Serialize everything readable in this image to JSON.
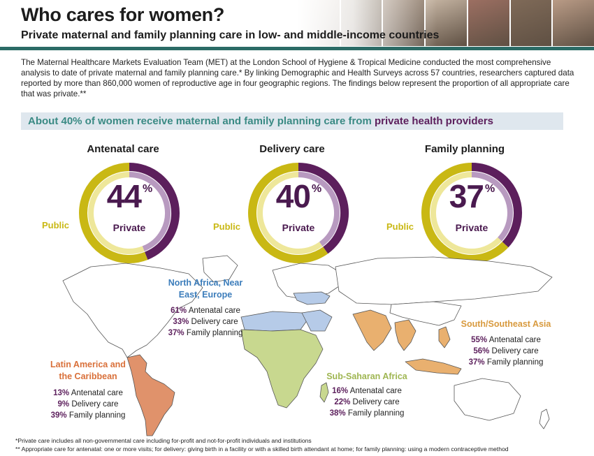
{
  "header": {
    "title": "Who cares for women?",
    "subtitle": "Private maternal and family planning care in low- and middle-income countries",
    "photos": [
      "#b9a28d",
      "#8a7a66",
      "#a08c7a",
      "#c7b6a4",
      "#9c6f62",
      "#7f6a58",
      "#b99b86"
    ]
  },
  "intro": "The Maternal Healthcare Markets Evaluation Team (MET) at the London School of Hygiene & Tropical Medicine conducted the most comprehensive analysis to date of private maternal and family planning care.* By linking Demographic and Health Surveys across 57 countries, researchers captured data reported by more than 860,000 women of reproductive age in four geographic regions. The findings below represent the proportion of all appropriate care that was private.**",
  "banner": {
    "lead": "About 40% of women receive maternal and family planning care from ",
    "accent": "private health providers"
  },
  "colors": {
    "private": "#5c1f5c",
    "private_light": "#b89ac0",
    "public": "#c9b814",
    "public_light": "#eee79a",
    "teal": "#2b6b66"
  },
  "donuts": [
    {
      "title": "Antenatal care",
      "value": "44",
      "unit": "%",
      "label": "Private",
      "public_label": "Public",
      "private_fraction": 0.44
    },
    {
      "title": "Delivery care",
      "value": "40",
      "unit": "%",
      "label": "Private",
      "public_label": "Public",
      "private_fraction": 0.4
    },
    {
      "title": "Family planning",
      "value": "37",
      "unit": "%",
      "label": "Private",
      "public_label": "Public",
      "private_fraction": 0.37
    }
  ],
  "regions": {
    "nafr": {
      "name_1": "North Africa, Near",
      "name_2": "East, Europe",
      "rows": [
        {
          "pct": "61%",
          "text": " Antenatal care"
        },
        {
          "pct": "33%",
          "text": " Delivery care"
        },
        {
          "pct": "37%",
          "text": " Family planning"
        }
      ]
    },
    "lac": {
      "name_1": "Latin America and",
      "name_2": "the Caribbean",
      "rows": [
        {
          "pct": "13%",
          "text": " Antenatal care"
        },
        {
          "pct": "9%",
          "text": " Delivery care"
        },
        {
          "pct": "39%",
          "text": " Family planning"
        }
      ]
    },
    "ssa": {
      "name_1": "Sub-Saharan Africa",
      "rows": [
        {
          "pct": "16%",
          "text": " Antenatal care"
        },
        {
          "pct": "22%",
          "text": " Delivery care"
        },
        {
          "pct": "38%",
          "text": " Family planning"
        }
      ]
    },
    "sea": {
      "name_1": "South/Southeast Asia",
      "rows": [
        {
          "pct": "55%",
          "text": " Antenatal care"
        },
        {
          "pct": "56%",
          "text": " Delivery care"
        },
        {
          "pct": "37%",
          "text": " Family planning"
        }
      ]
    }
  },
  "map_colors": {
    "land": "#ffffff",
    "outline": "#555555",
    "nafr": "#b6cbe8",
    "lac": "#e0926b",
    "ssa": "#c8d88f",
    "sea": "#e9b06f"
  },
  "footnotes": [
    "*Private care includes all non-governmental care including for-profit and not-for-profit individuals and institutions",
    "** Appropriate care for antenatal: one or more visits; for delivery: giving birth in a facility or with a skilled birth attendant at home; for family planning: using a modern contraceptive method"
  ]
}
